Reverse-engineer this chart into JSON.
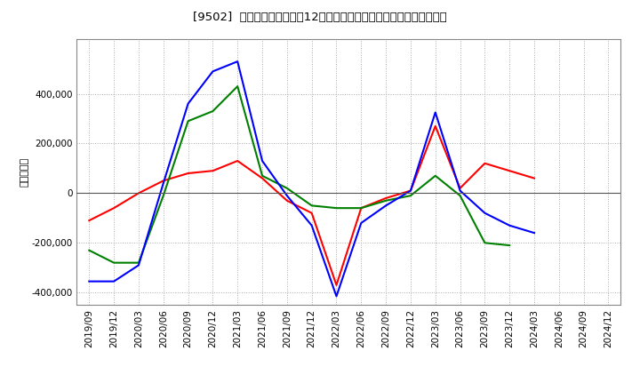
{
  "title": "[9502]  キャッシュフローの12か月移動合計の対前年同期増減額の推移",
  "ylabel": "（百万円）",
  "background_color": "#ffffff",
  "plot_bg_color": "#ffffff",
  "grid_color": "#aaaaaa",
  "x_labels": [
    "2019/09",
    "2019/12",
    "2020/03",
    "2020/06",
    "2020/09",
    "2020/12",
    "2021/03",
    "2021/06",
    "2021/09",
    "2021/12",
    "2022/03",
    "2022/06",
    "2022/09",
    "2022/12",
    "2023/03",
    "2023/06",
    "2023/09",
    "2023/12",
    "2024/03",
    "2024/06",
    "2024/09",
    "2024/12"
  ],
  "operating_cf": [
    -110000,
    -60000,
    0,
    50000,
    80000,
    90000,
    130000,
    60000,
    -30000,
    -80000,
    -370000,
    -60000,
    -20000,
    10000,
    270000,
    20000,
    120000,
    90000,
    60000,
    null,
    null,
    null
  ],
  "investing_cf": [
    -230000,
    -280000,
    -280000,
    -10000,
    290000,
    330000,
    430000,
    70000,
    20000,
    -50000,
    -60000,
    -60000,
    -30000,
    -10000,
    70000,
    -10000,
    -200000,
    -210000,
    null,
    null,
    null,
    null
  ],
  "free_cf": [
    -355000,
    -355000,
    -290000,
    40000,
    360000,
    490000,
    530000,
    130000,
    -10000,
    -130000,
    -415000,
    -120000,
    -50000,
    10000,
    325000,
    10000,
    -80000,
    -130000,
    -160000,
    null,
    null,
    null
  ],
  "ylim": [
    -450000,
    620000
  ],
  "yticks": [
    -400000,
    -200000,
    0,
    200000,
    400000
  ],
  "line_colors": {
    "operating": "#ff0000",
    "investing": "#008000",
    "free": "#0000ff"
  }
}
